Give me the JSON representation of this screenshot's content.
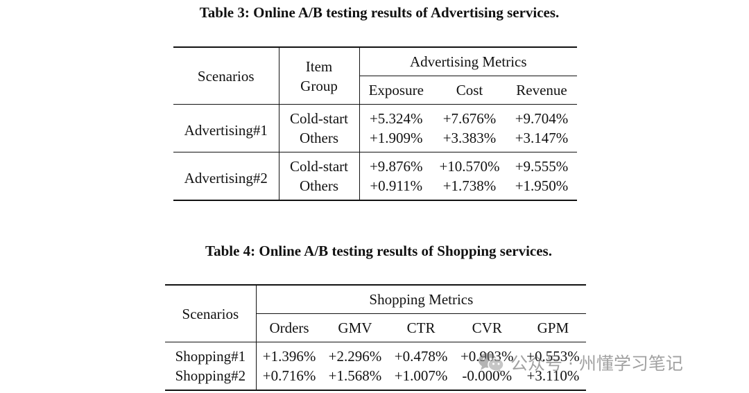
{
  "table3": {
    "caption": "Table 3: Online A/B testing results of Advertising services.",
    "headers": {
      "scenarios": "Scenarios",
      "item_group_line1": "Item",
      "item_group_line2": "Group",
      "metrics_group": "Advertising Metrics",
      "metrics": [
        "Exposure",
        "Cost",
        "Revenue"
      ]
    },
    "rows": [
      {
        "scenario": "Advertising#1",
        "group": "Cold-start",
        "values": [
          "+5.324%",
          "+7.676%",
          "+9.704%"
        ]
      },
      {
        "scenario": "Advertising#1",
        "group": "Others",
        "values": [
          "+1.909%",
          "+3.383%",
          "+3.147%"
        ]
      },
      {
        "scenario": "Advertising#2",
        "group": "Cold-start",
        "values": [
          "+9.876%",
          "+10.570%",
          "+9.555%"
        ]
      },
      {
        "scenario": "Advertising#2",
        "group": "Others",
        "values": [
          "+0.911%",
          "+1.738%",
          "+1.950%"
        ]
      }
    ]
  },
  "table4": {
    "caption": "Table 4: Online A/B testing results of Shopping services.",
    "headers": {
      "scenarios": "Scenarios",
      "metrics_group": "Shopping Metrics",
      "metrics": [
        "Orders",
        "GMV",
        "CTR",
        "CVR",
        "GPM"
      ]
    },
    "rows": [
      {
        "scenario": "Shopping#1",
        "values": [
          "+1.396%",
          "+2.296%",
          "+0.478%",
          "+0.903%",
          "+0.553%"
        ]
      },
      {
        "scenario": "Shopping#2",
        "values": [
          "+0.716%",
          "+1.568%",
          "+1.007%",
          "-0.000%",
          "+3.110%"
        ]
      }
    ]
  },
  "watermark": {
    "icon": "wechat-icon",
    "text": "公众号 · 州懂学习笔记"
  }
}
